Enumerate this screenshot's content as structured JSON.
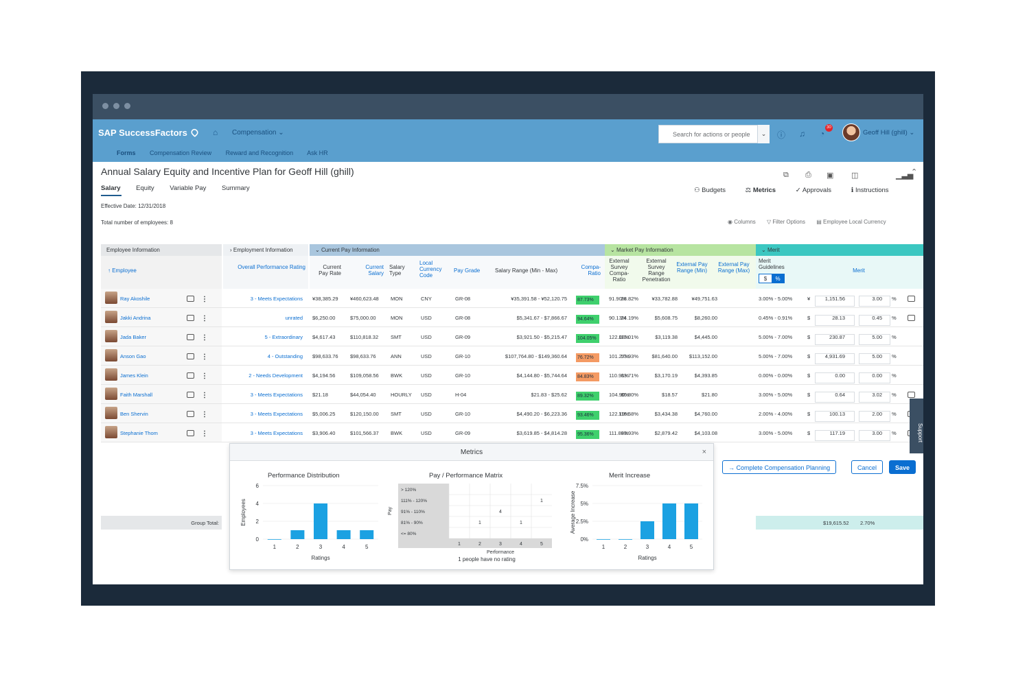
{
  "shell": {
    "logo": "SAP SuccessFactors",
    "module": "Compensation ⌄",
    "search_placeholder": "Search for actions or people",
    "user": "Geoff Hill (ghill) ⌄",
    "notif_count": "30"
  },
  "subnav": [
    "Forms",
    "Compensation Review",
    "Reward and Recognition",
    "Ask HR"
  ],
  "page": {
    "title": "Annual Salary Equity and Incentive Plan for Geoff Hill (ghill)",
    "tabs": [
      "Salary",
      "Equity",
      "Variable Pay",
      "Summary"
    ],
    "effective_date": "Effective Date: 12/31/2018",
    "total_employees": "Total number of employees: 8",
    "actions": [
      "Budgets",
      "Metrics",
      "Approvals",
      "Instructions"
    ],
    "tools": [
      "Columns",
      "Filter Options",
      "Employee Local Currency"
    ]
  },
  "grid": {
    "groups": [
      "Employee Information",
      "Employment Information",
      "Current Pay Information",
      "Market Pay Information",
      "Merit"
    ],
    "headers": {
      "employee": "↑ Employee",
      "perf": "Overall Performance Rating",
      "cur_rate": "Current Pay Rate",
      "cur_salary": "Current Salary",
      "sal_type": "Salary Type",
      "currency": "Local Currency Code",
      "grade": "Pay Grade",
      "range": "Salary Range (Min - Max)",
      "compa": "Compa-Ratio",
      "ext_compa": "External Survey Compa-Ratio",
      "ext_pen": "External Survey Range Penetration",
      "ext_min": "External Pay Range (Min)",
      "ext_max": "External Pay Range (Max)",
      "guide": "Merit Guidelines",
      "merit": "Merit"
    },
    "guide_toggle": [
      "$",
      "%"
    ],
    "rows": [
      {
        "name": "Ray Akoshile",
        "perf": "3 - Meets Expectations",
        "rate": "¥38,385.29",
        "salary": "¥460,623.48",
        "type": "MON",
        "cur": "CNY",
        "grade": "GR-08",
        "range": "¥35,391.58 - ¥52,120.75",
        "compa": "87.73%",
        "compa_color": "#3fd06d",
        "ecompa": "91.90%",
        "epen": "28.82%",
        "emin": "¥33,782.88",
        "emax": "¥49,751.63",
        "guide": "3.00% - 5.00%",
        "sym": "¥",
        "merit": "1,151.56",
        "pct": "3.00",
        "row_comment": true
      },
      {
        "name": "Jakki Andrina",
        "perf": "unrated",
        "rate": "$6,250.00",
        "salary": "$75,000.00",
        "type": "MON",
        "cur": "USD",
        "grade": "GR-08",
        "range": "$5,341.67 - $7,866.67",
        "compa": "94.64%",
        "compa_color": "#3fd06d",
        "ecompa": "90.13%",
        "epen": "24.19%",
        "emin": "$5,608.75",
        "emax": "$8,260.00",
        "guide": "0.45% - 0.91%",
        "sym": "$",
        "merit": "28.13",
        "pct": "0.45",
        "row_comment": true
      },
      {
        "name": "Jada Baker",
        "perf": "5 - Extraordinary",
        "rate": "$4,617.43",
        "salary": "$110,818.32",
        "type": "SMT",
        "cur": "USD",
        "grade": "GR-09",
        "range": "$3,921.50 - $5,215.47",
        "compa": "104.05%",
        "compa_color": "#3fd06d",
        "ecompa": "122.08%",
        "epen": "113.01%",
        "emin": "$3,119.38",
        "emax": "$4,445.00",
        "guide": "5.00% - 7.00%",
        "sym": "$",
        "merit": "230.87",
        "pct": "5.00",
        "row_comment": false
      },
      {
        "name": "Anson Gao",
        "perf": "4 - Outstanding",
        "rate": "$98,633.76",
        "salary": "$98,633.76",
        "type": "ANN",
        "cur": "USD",
        "grade": "GR-10",
        "range": "$107,764.80 - $149,360.64",
        "compa": "76.72%",
        "compa_color": "#f49a63",
        "ecompa": "101.27%",
        "epen": "53.93%",
        "emin": "$81,640.00",
        "emax": "$113,152.00",
        "guide": "5.00% - 7.00%",
        "sym": "$",
        "merit": "4,931.69",
        "pct": "5.00",
        "row_comment": false
      },
      {
        "name": "James Klein",
        "perf": "2 - Needs Development",
        "rate": "$4,194.56",
        "salary": "$109,058.56",
        "type": "BWK",
        "cur": "USD",
        "grade": "GR-10",
        "range": "$4,144.80 - $5,744.64",
        "compa": "84.83%",
        "compa_color": "#f49a63",
        "ecompa": "110.91%",
        "epen": "83.71%",
        "emin": "$3,170.19",
        "emax": "$4,393.85",
        "guide": "0.00% - 0.00%",
        "sym": "$",
        "merit": "0.00",
        "pct": "0.00",
        "row_comment": false
      },
      {
        "name": "Faith Marshall",
        "perf": "3 - Meets Expectations",
        "rate": "$21.18",
        "salary": "$44,054.40",
        "type": "HOURLY",
        "cur": "USD",
        "grade": "H-04",
        "range": "$21.83 - $25.62",
        "compa": "89.32%",
        "compa_color": "#3fd06d",
        "ecompa": "104.90%",
        "epen": "80.80%",
        "emin": "$18.57",
        "emax": "$21.80",
        "guide": "3.00% - 5.00%",
        "sym": "$",
        "merit": "0.64",
        "pct": "3.02",
        "row_comment": true
      },
      {
        "name": "Ben Shervin",
        "perf": "3 - Meets Expectations",
        "rate": "$5,006.25",
        "salary": "$120,150.00",
        "type": "SMT",
        "cur": "USD",
        "grade": "GR-10",
        "range": "$4,490.20 - $6,223.36",
        "compa": "93.46%",
        "compa_color": "#3fd06d",
        "ecompa": "122.19%",
        "epen": "118.58%",
        "emin": "$3,434.38",
        "emax": "$4,760.00",
        "guide": "2.00% - 4.00%",
        "sym": "$",
        "merit": "100.13",
        "pct": "2.00",
        "row_comment": true
      },
      {
        "name": "Stephanie Thom",
        "perf": "3 - Meets Expectations",
        "rate": "$3,906.40",
        "salary": "$101,566.37",
        "type": "BWK",
        "cur": "USD",
        "grade": "GR-09",
        "range": "$3,619.85 - $4,814.28",
        "compa": "95.36%",
        "compa_color": "#3fd06d",
        "ecompa": "111.89%",
        "epen": "83.93%",
        "emin": "$2,879.42",
        "emax": "$4,103.08",
        "guide": "3.00% - 5.00%",
        "sym": "$",
        "merit": "117.19",
        "pct": "3.00",
        "row_comment": true
      }
    ],
    "pct_sign": "%",
    "group_total_label": "Group Total:",
    "group_total_merit": "$19,615.52",
    "group_total_pct": "2.70%"
  },
  "metrics": {
    "title": "Metrics",
    "close": "×",
    "support": "Support"
  },
  "buttons": {
    "complete": "→ Complete Compensation Planning",
    "cancel": "Cancel",
    "save": "Save"
  },
  "chart_data": [
    {
      "type": "bar",
      "title": "Performance Distribution",
      "xlabel": "Ratings",
      "ylabel": "Employees",
      "categories": [
        "1",
        "2",
        "3",
        "4",
        "5"
      ],
      "values": [
        0,
        1,
        4,
        1,
        1
      ],
      "yticks": [
        "0",
        "2",
        "4",
        "6"
      ],
      "ylim": [
        0,
        6
      ],
      "color": "#1ba1e2"
    },
    {
      "type": "table",
      "title": "Pay / Performance Matrix",
      "xlabel": "Performance",
      "ylabel": "Pay",
      "rows": [
        "> 120%",
        "111% - 120%",
        "91% - 110%",
        "81% - 90%",
        "<= 80%"
      ],
      "columns": [
        "1",
        "2",
        "3",
        "4",
        "5"
      ],
      "cells": [
        [
          "",
          "",
          "",
          "",
          ""
        ],
        [
          "",
          "",
          "",
          "",
          "1"
        ],
        [
          "",
          "",
          "4",
          "",
          ""
        ],
        [
          "",
          "1",
          "",
          "1",
          ""
        ],
        [
          "",
          "",
          "",
          "",
          ""
        ]
      ],
      "footnote": "1 people have no rating"
    },
    {
      "type": "bar",
      "title": "Merit Increase",
      "xlabel": "Ratings",
      "ylabel": "Average Increase",
      "categories": [
        "1",
        "2",
        "3",
        "4",
        "5"
      ],
      "values": [
        0,
        0,
        2.5,
        5,
        5
      ],
      "yticks": [
        "0%",
        "2.5%",
        "5%",
        "7.5%"
      ],
      "ylim": [
        0,
        7.5
      ],
      "color": "#1ba1e2"
    }
  ]
}
